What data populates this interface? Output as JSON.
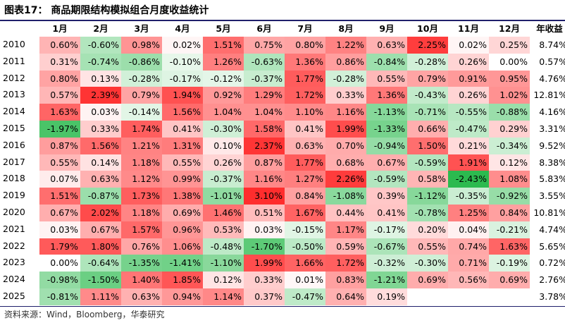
{
  "title": "图表17：  商品期限结构模拟组合月度收益统计",
  "source": "资料来源：Wind，Bloomberg，华泰研究",
  "colors": {
    "positive": "#ff2a2a",
    "negative": "#2bb24a",
    "rule": "#1f1f6b"
  },
  "chart_data": {
    "type": "table",
    "title": "图表17：  商品期限结构模拟组合月度收益统计",
    "columns": [
      "1月",
      "2月",
      "3月",
      "4月",
      "5月",
      "6月",
      "7月",
      "8月",
      "9月",
      "10月",
      "11月",
      "12月",
      "年收益"
    ],
    "rows": [
      {
        "year": "2010",
        "values": [
          "0.60%",
          "-0.60%",
          "0.98%",
          "0.02%",
          "1.51%",
          "0.75%",
          "0.80%",
          "1.22%",
          "0.63%",
          "2.25%",
          "0.02%",
          "0.25%",
          "8.74%"
        ]
      },
      {
        "year": "2011",
        "values": [
          "0.31%",
          "-0.74%",
          "-0.86%",
          "-0.10%",
          "1.26%",
          "-0.63%",
          "1.36%",
          "0.86%",
          "-0.84%",
          "-0.28%",
          "0.26%",
          "0.00%",
          "0.57%"
        ]
      },
      {
        "year": "2012",
        "values": [
          "0.80%",
          "0.13%",
          "-0.28%",
          "-0.17%",
          "-0.12%",
          "-0.37%",
          "1.77%",
          "-0.28%",
          "0.55%",
          "0.79%",
          "0.91%",
          "0.95%",
          "4.76%"
        ]
      },
      {
        "year": "2013",
        "values": [
          "0.57%",
          "2.39%",
          "0.79%",
          "1.94%",
          "0.92%",
          "1.29%",
          "1.72%",
          "0.33%",
          "1.36%",
          "-0.43%",
          "0.26%",
          "1.02%",
          "12.81%"
        ]
      },
      {
        "year": "2014",
        "values": [
          "1.63%",
          "0.03%",
          "-0.14%",
          "1.56%",
          "1.04%",
          "1.04%",
          "1.10%",
          "1.16%",
          "-1.13%",
          "-0.71%",
          "-0.55%",
          "-0.88%",
          "4.16%"
        ]
      },
      {
        "year": "2015",
        "values": [
          "-1.97%",
          "0.33%",
          "1.74%",
          "0.41%",
          "-0.30%",
          "1.58%",
          "0.41%",
          "1.99%",
          "-1.33%",
          "0.66%",
          "-0.47%",
          "0.29%",
          "3.31%"
        ]
      },
      {
        "year": "2016",
        "values": [
          "0.87%",
          "1.56%",
          "1.21%",
          "1.31%",
          "0.10%",
          "2.37%",
          "0.63%",
          "0.70%",
          "-0.94%",
          "1.50%",
          "0.21%",
          "-0.34%",
          "9.52%"
        ]
      },
      {
        "year": "2017",
        "values": [
          "0.55%",
          "0.14%",
          "1.18%",
          "0.55%",
          "0.26%",
          "0.87%",
          "1.77%",
          "0.68%",
          "0.67%",
          "-0.59%",
          "1.91%",
          "0.12%",
          "8.38%"
        ]
      },
      {
        "year": "2018",
        "values": [
          "0.07%",
          "0.63%",
          "1.12%",
          "0.99%",
          "-0.37%",
          "1.16%",
          "1.27%",
          "2.26%",
          "-0.59%",
          "0.58%",
          "-2.43%",
          "1.08%",
          "5.83%"
        ]
      },
      {
        "year": "2019",
        "values": [
          "1.51%",
          "-0.87%",
          "1.73%",
          "1.38%",
          "-1.01%",
          "3.10%",
          "0.84%",
          "-1.08%",
          "0.39%",
          "-1.12%",
          "-0.35%",
          "-0.92%",
          "3.55%"
        ]
      },
      {
        "year": "2020",
        "values": [
          "0.67%",
          "2.02%",
          "1.18%",
          "0.69%",
          "1.46%",
          "0.51%",
          "1.67%",
          "0.44%",
          "0.41%",
          "-0.78%",
          "1.25%",
          "0.84%",
          "10.81%"
        ]
      },
      {
        "year": "2021",
        "values": [
          "0.03%",
          "0.67%",
          "1.57%",
          "0.96%",
          "0.53%",
          "0.03%",
          "-0.15%",
          "1.17%",
          "-0.17%",
          "0.20%",
          "0.04%",
          "-0.21%",
          "4.74%"
        ]
      },
      {
        "year": "2022",
        "values": [
          "1.79%",
          "1.80%",
          "0.76%",
          "1.06%",
          "-0.48%",
          "-1.70%",
          "-0.50%",
          "0.59%",
          "-0.67%",
          "0.55%",
          "0.74%",
          "1.63%",
          "5.65%"
        ]
      },
      {
        "year": "2023",
        "values": [
          "0.00%",
          "-0.64%",
          "-1.35%",
          "-1.41%",
          "-1.10%",
          "1.99%",
          "1.66%",
          "1.72%",
          "-0.32%",
          "-0.30%",
          "0.71%",
          "-0.19%",
          "0.72%"
        ]
      },
      {
        "year": "2024",
        "values": [
          "-0.98%",
          "-1.50%",
          "1.40%",
          "1.85%",
          "0.12%",
          "0.33%",
          "0.01%",
          "0.83%",
          "-1.21%",
          "0.69%",
          "0.56%",
          "0.69%",
          "2.76%"
        ]
      },
      {
        "year": "2025",
        "values": [
          "-0.81%",
          "1.11%",
          "0.63%",
          "0.94%",
          "1.14%",
          "0.37%",
          "-0.47%",
          "0.64%",
          "0.19%",
          "",
          "",
          "",
          "3.78%"
        ]
      }
    ]
  }
}
